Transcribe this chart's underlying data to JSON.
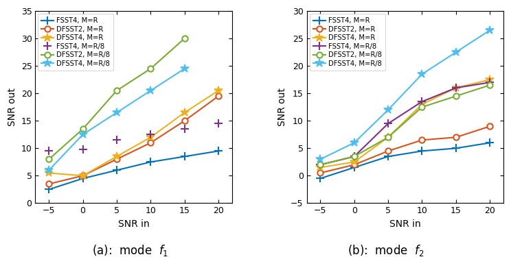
{
  "x": [
    -5,
    0,
    5,
    10,
    15,
    20
  ],
  "panel_a": {
    "ylabel": "SNR out",
    "xlabel": "SNR in",
    "ylim": [
      0,
      35
    ],
    "yticks": [
      0,
      5,
      10,
      15,
      20,
      25,
      30,
      35
    ],
    "xlim": [
      -7,
      22
    ],
    "xticks": [
      -5,
      0,
      5,
      10,
      15,
      20
    ],
    "series": {
      "FSST4_R": {
        "y": [
          2.5,
          4.5,
          6.0,
          7.5,
          8.5,
          9.5
        ],
        "color": "#0072bd",
        "marker": "+",
        "label": "FSST4, M=R",
        "ms": 8,
        "mew": 1.5,
        "lw": 1.5,
        "ls": "-",
        "scatter": false
      },
      "DFSST2_R": {
        "y": [
          3.5,
          5.0,
          8.0,
          11.0,
          15.0,
          19.5
        ],
        "color": "#d95319",
        "marker": "o",
        "label": "DFSST2, M=R",
        "ms": 6,
        "mew": 1.5,
        "lw": 1.5,
        "ls": "-",
        "scatter": false
      },
      "DFSST4_R": {
        "y": [
          5.5,
          5.0,
          8.5,
          12.0,
          16.5,
          20.5
        ],
        "color": "#edb120",
        "marker": "*",
        "label": "DFSST4, M=R",
        "ms": 9,
        "mew": 1.2,
        "lw": 1.5,
        "ls": "-",
        "scatter": false
      },
      "FSST4_R8": {
        "y": [
          9.5,
          9.8,
          11.5,
          12.5,
          13.5,
          14.5
        ],
        "color": "#7e2f8e",
        "marker": "+",
        "label": "FSST4, M=R/8",
        "ms": 8,
        "mew": 1.5,
        "lw": 1.5,
        "ls": "none",
        "scatter": true
      },
      "DFSST2_R8": {
        "y": [
          8.0,
          13.5,
          20.5,
          24.5,
          30.0,
          null
        ],
        "color": "#77ac30",
        "marker": "o",
        "label": "DFSST2, M=R/8",
        "ms": 6,
        "mew": 1.5,
        "lw": 1.5,
        "ls": "-",
        "scatter": false
      },
      "DFSST4_R8": {
        "y": [
          6.0,
          12.5,
          16.5,
          20.5,
          24.5,
          null
        ],
        "color": "#4dbeee",
        "marker": "*",
        "label": "DFSST4, M=R/8",
        "ms": 9,
        "mew": 1.2,
        "lw": 1.5,
        "ls": "-",
        "scatter": false
      }
    }
  },
  "panel_b": {
    "ylabel": "SNR out",
    "xlabel": "SNR in",
    "ylim": [
      -5,
      30
    ],
    "yticks": [
      -5,
      0,
      5,
      10,
      15,
      20,
      25,
      30
    ],
    "xlim": [
      -7,
      22
    ],
    "xticks": [
      -5,
      0,
      5,
      10,
      15,
      20
    ],
    "series": {
      "FSST4_R": {
        "y": [
          -0.5,
          1.5,
          3.5,
          4.5,
          5.0,
          6.0
        ],
        "color": "#0072bd",
        "marker": "+",
        "label": "FSST4, M=R",
        "ms": 8,
        "mew": 1.5,
        "lw": 1.5,
        "ls": "-",
        "scatter": false
      },
      "DFSST2_R": {
        "y": [
          0.5,
          2.0,
          4.5,
          6.5,
          7.0,
          9.0
        ],
        "color": "#d95319",
        "marker": "o",
        "label": "DFSST2, M=R",
        "ms": 6,
        "mew": 1.5,
        "lw": 1.5,
        "ls": "-",
        "scatter": false
      },
      "DFSST4_R": {
        "y": [
          1.5,
          2.5,
          7.0,
          13.0,
          16.0,
          17.5
        ],
        "color": "#edb120",
        "marker": "*",
        "label": "DFSST4, M=R",
        "ms": 9,
        "mew": 1.2,
        "lw": 1.5,
        "ls": "-",
        "scatter": false
      },
      "FSST4_R8": {
        "y": [
          2.0,
          3.5,
          9.5,
          13.5,
          16.0,
          17.0
        ],
        "color": "#7e2f8e",
        "marker": "+",
        "label": "FSST4, M=R/8",
        "ms": 8,
        "mew": 1.5,
        "lw": 1.5,
        "ls": "-",
        "scatter": false
      },
      "DFSST2_R8": {
        "y": [
          2.0,
          3.5,
          7.0,
          12.5,
          14.5,
          16.5
        ],
        "color": "#77ac30",
        "marker": "o",
        "label": "DFSST2, M=R/8",
        "ms": 6,
        "mew": 1.5,
        "lw": 1.5,
        "ls": "-",
        "scatter": false
      },
      "DFSST4_R8": {
        "y": [
          3.0,
          6.0,
          12.0,
          18.5,
          22.5,
          26.5
        ],
        "color": "#4dbeee",
        "marker": "*",
        "label": "DFSST4, M=R/8",
        "ms": 9,
        "mew": 1.2,
        "lw": 1.5,
        "ls": "-",
        "scatter": false
      }
    }
  },
  "legend_order": [
    "FSST4_R",
    "DFSST2_R",
    "DFSST4_R",
    "FSST4_R8",
    "DFSST2_R8",
    "DFSST4_R8"
  ],
  "caption_a": "(a):  mode  $f_1$",
  "caption_b": "(b):  mode  $f_2$",
  "figsize": [
    7.44,
    3.75
  ],
  "dpi": 100
}
